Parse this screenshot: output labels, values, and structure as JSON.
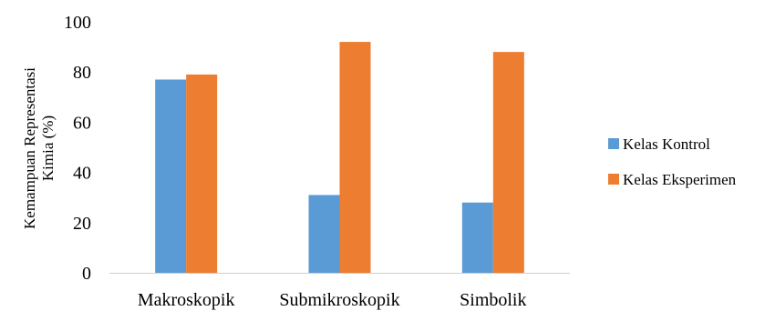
{
  "chart_data": {
    "type": "bar",
    "categories": [
      "Makroskopik",
      "Submikroskopik",
      "Simbolik"
    ],
    "series": [
      {
        "name": "Kelas Kontrol",
        "values": [
          77,
          31,
          28
        ],
        "color": "#5B9BD5"
      },
      {
        "name": "Kelas Eksperimen",
        "values": [
          79,
          92,
          88
        ],
        "color": "#ED7D31"
      }
    ],
    "ylabel": [
      "Kemampuan Representasi",
      "Kimia (%)"
    ],
    "ylim": [
      0,
      100
    ],
    "yticks": [
      0,
      20,
      40,
      60,
      80,
      100
    ],
    "grid": false,
    "legend_position": "right"
  }
}
